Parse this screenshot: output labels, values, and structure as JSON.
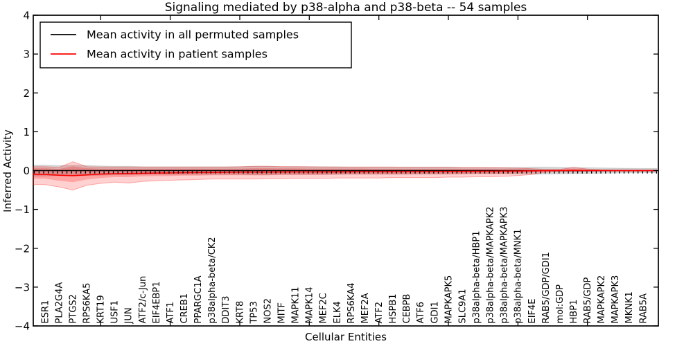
{
  "chart_data": {
    "type": "line",
    "title": "Signaling mediated by p38-alpha and p38-beta -- 54 samples",
    "xlabel": "Cellular Entities",
    "ylabel": "Inferred Activity",
    "ylim": [
      -4,
      4
    ],
    "grid": false,
    "legend_position": "upper left",
    "ytick_values": [
      4,
      3,
      2,
      1,
      0,
      -1,
      -2,
      -3,
      -4
    ],
    "ytick_labels": [
      "4",
      "3",
      "2",
      "1",
      "0",
      "−1",
      "−2",
      "−3",
      "−4"
    ],
    "x_major_tick_positions": [
      5,
      10,
      15,
      20,
      25,
      30,
      35,
      40
    ],
    "categories": [
      "ESR1",
      "PLA2G4A",
      "PTGS2",
      "RPS6KA5",
      "KRT19",
      "USF1",
      "JUN",
      "ATF2/c-Jun",
      "EIF4EBP1",
      "ATF1",
      "CREB1",
      "PPARGC1A",
      "p38alpha-beta/CK2",
      "DDIT3",
      "KRT8",
      "TP53",
      "NOS2",
      "MITF",
      "MAPK11",
      "MAPK14",
      "MEF2C",
      "ELK4",
      "RPS6KA4",
      "MEF2A",
      "ATF2",
      "HSPB1",
      "CEBPB",
      "ATF6",
      "GDI1",
      "MAPKAPK5",
      "SLC9A1",
      "p38alpha-beta/HBP1",
      "p38alpha-beta/MAPKAPK2",
      "p38alpha-beta/MAPKAPK3",
      "p38alpha-beta/MNK1",
      "EIF4E",
      "RAB5/GDP/GDI1",
      "mol:GDP",
      "HBP1",
      "RAB5/GDP",
      "MAPKAPK2",
      "MAPKAPK3",
      "MKNK1",
      "RAB5A"
    ],
    "series": [
      {
        "name": "Mean activity in all permuted samples",
        "color": "#000000",
        "values": [
          0,
          0,
          0,
          0,
          0,
          0,
          0,
          0,
          0,
          0,
          0,
          0,
          0,
          0,
          0,
          0,
          0,
          0,
          0,
          0,
          0,
          0,
          0,
          0,
          0,
          0,
          0,
          0,
          0,
          0,
          0,
          0,
          0,
          0,
          0,
          0,
          0,
          0,
          0,
          0,
          0,
          0,
          0,
          0
        ]
      },
      {
        "name": "Mean activity in patient samples",
        "color": "#ff0000",
        "values": [
          -0.1,
          -0.12,
          -0.13,
          -0.11,
          -0.09,
          -0.08,
          -0.075,
          -0.07,
          -0.065,
          -0.06,
          -0.055,
          -0.05,
          -0.05,
          -0.045,
          -0.04,
          -0.04,
          -0.04,
          -0.038,
          -0.036,
          -0.035,
          -0.034,
          -0.033,
          -0.032,
          -0.03,
          -0.03,
          -0.028,
          -0.027,
          -0.026,
          -0.025,
          -0.024,
          -0.022,
          -0.02,
          -0.018,
          -0.015,
          -0.012,
          -0.008,
          -0.004,
          0,
          0.005,
          0,
          -0.002,
          -0.002,
          -0.002,
          -0.002
        ]
      }
    ],
    "bands": [
      {
        "name": "permuted-samples-range",
        "color": "rgba(0,0,0,0.16)",
        "edge": "rgba(0,0,0,0.10)",
        "upper": [
          0.14,
          0.13,
          0.14,
          0.13,
          0.12,
          0.11,
          0.11,
          0.1,
          0.1,
          0.1,
          0.1,
          0.1,
          0.1,
          0.1,
          0.1,
          0.11,
          0.11,
          0.1,
          0.1,
          0.1,
          0.1,
          0.1,
          0.09,
          0.09,
          0.09,
          0.09,
          0.09,
          0.09,
          0.09,
          0.09,
          0.08,
          0.08,
          0.08,
          0.08,
          0.08,
          0.09,
          0.09,
          0.085,
          0.08,
          0.075,
          0.07,
          0.065,
          0.06,
          0.055
        ],
        "lower": [
          -0.14,
          -0.13,
          -0.14,
          -0.13,
          -0.12,
          -0.11,
          -0.11,
          -0.1,
          -0.1,
          -0.1,
          -0.1,
          -0.1,
          -0.1,
          -0.1,
          -0.1,
          -0.11,
          -0.11,
          -0.1,
          -0.1,
          -0.1,
          -0.1,
          -0.1,
          -0.09,
          -0.09,
          -0.09,
          -0.09,
          -0.09,
          -0.09,
          -0.09,
          -0.09,
          -0.08,
          -0.08,
          -0.08,
          -0.08,
          -0.08,
          -0.09,
          -0.09,
          -0.085,
          -0.08,
          -0.075,
          -0.07,
          -0.065,
          -0.06,
          -0.055
        ]
      },
      {
        "name": "patient-samples-outer-range",
        "color": "rgba(255,0,0,0.18)",
        "edge": "rgba(255,0,0,0.30)",
        "upper": [
          0.1,
          0.08,
          0.23,
          0.1,
          0.09,
          0.09,
          0.09,
          0.09,
          0.09,
          0.09,
          0.09,
          0.09,
          0.09,
          0.09,
          0.1,
          0.11,
          0.11,
          0.105,
          0.105,
          0.1,
          0.095,
          0.09,
          0.09,
          0.09,
          0.09,
          0.09,
          0.085,
          0.085,
          0.085,
          0.085,
          0.08,
          0.08,
          0.075,
          0.07,
          0.065,
          0.05,
          0.03,
          0.03,
          0.08,
          0.04,
          0.02,
          0.015,
          0.012,
          0.012
        ],
        "lower": [
          -0.36,
          -0.42,
          -0.5,
          -0.38,
          -0.33,
          -0.3,
          -0.32,
          -0.28,
          -0.26,
          -0.25,
          -0.24,
          -0.23,
          -0.22,
          -0.22,
          -0.22,
          -0.22,
          -0.21,
          -0.21,
          -0.2,
          -0.2,
          -0.2,
          -0.19,
          -0.19,
          -0.19,
          -0.19,
          -0.18,
          -0.18,
          -0.18,
          -0.18,
          -0.17,
          -0.17,
          -0.16,
          -0.16,
          -0.15,
          -0.13,
          -0.1,
          -0.04,
          -0.03,
          -0.03,
          -0.02,
          -0.015,
          -0.012,
          -0.012,
          -0.012
        ]
      },
      {
        "name": "patient-samples-inner-range",
        "color": "rgba(255,0,0,0.22)",
        "edge": "none",
        "upper": [
          0.06,
          0.04,
          0.11,
          0.06,
          0.05,
          0.05,
          0.05,
          0.05,
          0.05,
          0.05,
          0.05,
          0.05,
          0.05,
          0.05,
          0.05,
          0.06,
          0.06,
          0.055,
          0.055,
          0.05,
          0.05,
          0.05,
          0.05,
          0.05,
          0.04,
          0.04,
          0.04,
          0.04,
          0.04,
          0.04,
          0.04,
          0.04,
          0.04,
          0.03,
          0.03,
          0.02,
          0.01,
          0.015,
          0.05,
          0.02,
          0.01,
          0.008,
          0.006,
          0.006
        ],
        "lower": [
          -0.21,
          -0.26,
          -0.3,
          -0.23,
          -0.19,
          -0.17,
          -0.17,
          -0.15,
          -0.14,
          -0.14,
          -0.13,
          -0.13,
          -0.12,
          -0.12,
          -0.12,
          -0.12,
          -0.12,
          -0.11,
          -0.11,
          -0.11,
          -0.11,
          -0.1,
          -0.1,
          -0.1,
          -0.1,
          -0.1,
          -0.1,
          -0.09,
          -0.09,
          -0.09,
          -0.09,
          -0.08,
          -0.08,
          -0.08,
          -0.07,
          -0.05,
          -0.02,
          -0.015,
          -0.015,
          -0.012,
          -0.01,
          -0.008,
          -0.006,
          -0.006
        ]
      }
    ],
    "zero_line_markers": "short black tick marks hanging below the permuted mean line at every sample position"
  }
}
